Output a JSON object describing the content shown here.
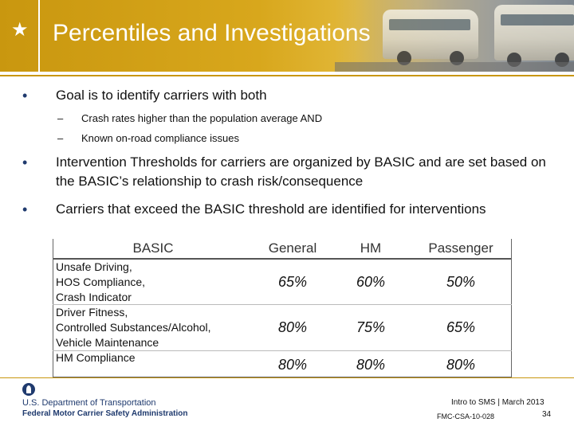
{
  "header": {
    "title": "Percentiles and Investigations",
    "star_icon": "star-icon",
    "accent": "#c9970f"
  },
  "bullets": [
    {
      "text": "Goal is to identify carriers with both",
      "subs": [
        "Crash rates higher than the population average AND",
        "Known on-road compliance issues"
      ]
    },
    {
      "text": "Intervention Thresholds for carriers are organized by BASIC and are set based on the BASIC’s relationship to crash risk/consequence",
      "subs": []
    },
    {
      "text": "Carriers that exceed the BASIC threshold are identified for interventions",
      "subs": []
    }
  ],
  "sub_dash": "–",
  "bullet_dot": "•",
  "table": {
    "headers": [
      "BASIC",
      "General",
      "HM",
      "Passenger"
    ],
    "rows": [
      {
        "label": "Unsafe Driving, HOS Compliance, Crash Indicator",
        "label_lines": [
          "Unsafe Driving,",
          "HOS Compliance,",
          "Crash Indicator"
        ],
        "values": [
          "65%",
          "60%",
          "50%"
        ]
      },
      {
        "label": "Driver Fitness, Controlled Substances/Alcohol, Vehicle Maintenance",
        "label_lines": [
          "Driver Fitness,",
          "Controlled Substances/Alcohol,",
          "Vehicle Maintenance"
        ],
        "values": [
          "80%",
          "75%",
          "65%"
        ]
      },
      {
        "label": "HM Compliance",
        "label_lines": [
          "HM Compliance"
        ],
        "values": [
          "80%",
          "80%",
          "80%"
        ]
      }
    ]
  },
  "footer": {
    "logo_icon": "dot-logo-icon",
    "org_line1": "U.S. Department of Transportation",
    "org_line2": "Federal Motor Carrier Safety Administration",
    "course": "Intro to SMS | March 2013",
    "code": "FMC-CSA-10-028",
    "page": "34"
  }
}
